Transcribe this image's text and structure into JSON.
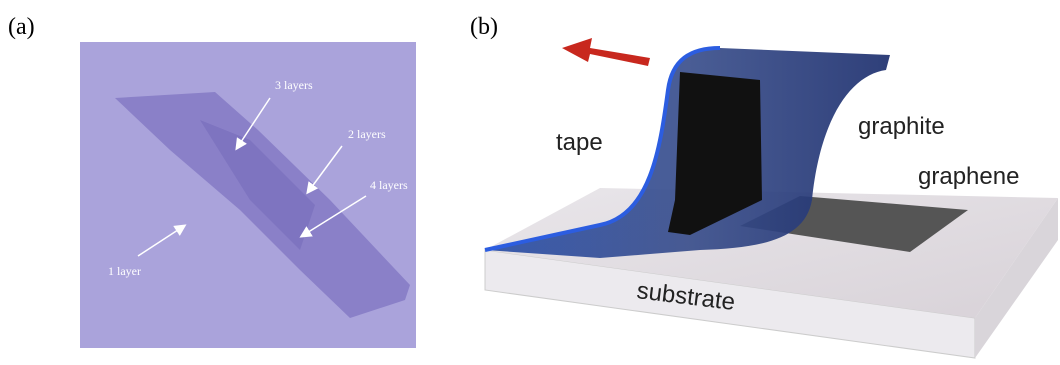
{
  "panels": [
    {
      "label": "(a)",
      "annotations": [
        "3 layers",
        "2 layers",
        "4 layers",
        "1 layer"
      ]
    },
    {
      "label": "(b)",
      "annotations": [
        "tape",
        "graphite",
        "graphene",
        "substrate"
      ]
    }
  ]
}
